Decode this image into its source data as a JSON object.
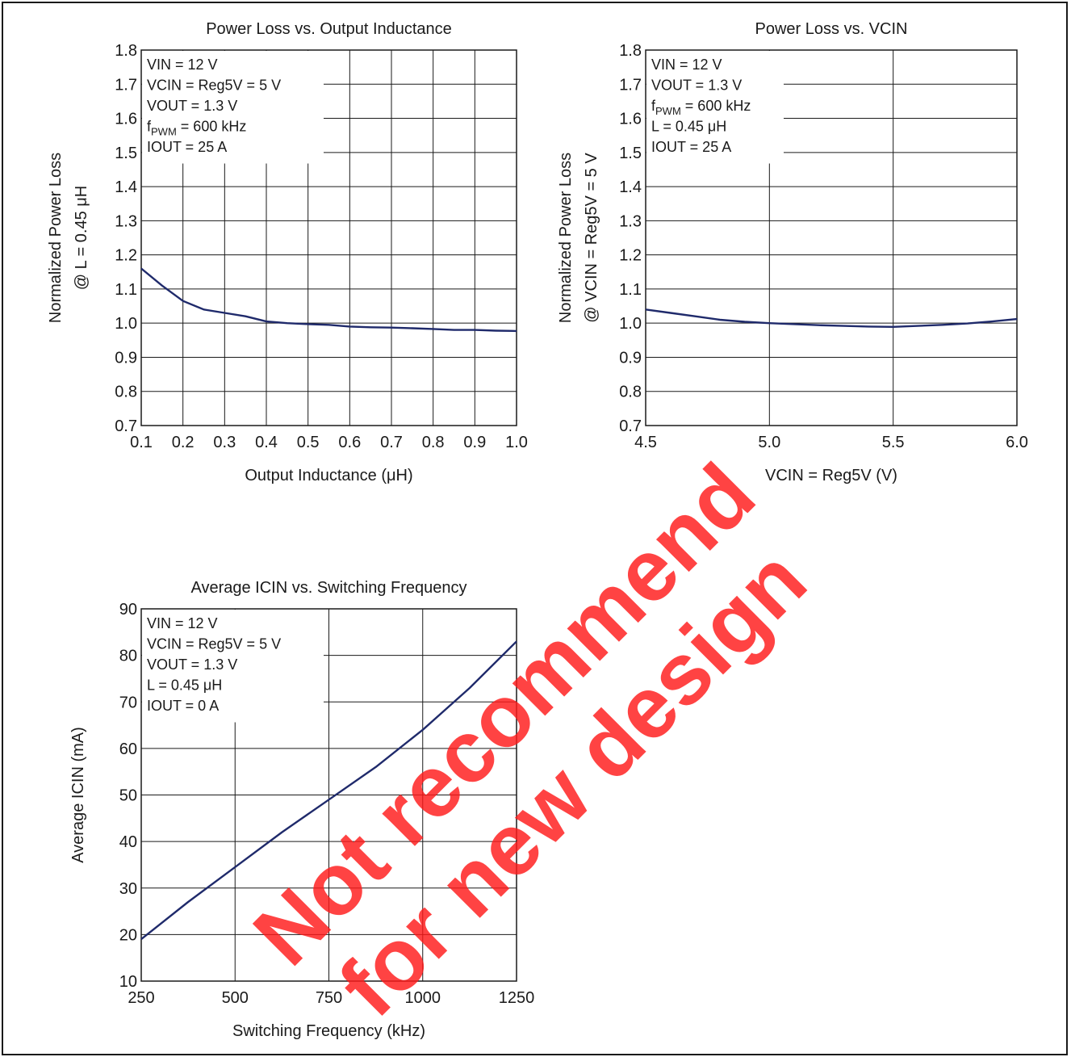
{
  "chart_data": [
    {
      "type": "line",
      "title": "Power Loss vs. Output Inductance",
      "xlabel": "Output Inductance   (μH)",
      "ylabel": [
        "Normalized Power Loss",
        "@ L = 0.45 μH"
      ],
      "xlim": [
        0.1,
        1.0
      ],
      "ylim": [
        0.7,
        1.8
      ],
      "xticks": [
        "0.1",
        "0.2",
        "0.3",
        "0.4",
        "0.5",
        "0.6",
        "0.7",
        "0.8",
        "0.9",
        "1.0"
      ],
      "yticks": [
        "0.7",
        "0.8",
        "0.9",
        "1.0",
        "1.1",
        "1.2",
        "1.3",
        "1.4",
        "1.5",
        "1.6",
        "1.7",
        "1.8"
      ],
      "grid": true,
      "annotations": [
        {
          "text": "VIN = 12 V"
        },
        {
          "text": "VCIN = Reg5V = 5 V"
        },
        {
          "text": "VOUT = 1.3 V"
        },
        {
          "text": "f",
          "sub": "PWM",
          "rest": " = 600 kHz"
        },
        {
          "text": "IOUT = 25 A"
        }
      ],
      "series": [
        {
          "color": "#1f2a6b",
          "x": [
            0.1,
            0.15,
            0.2,
            0.25,
            0.3,
            0.35,
            0.4,
            0.45,
            0.5,
            0.55,
            0.6,
            0.65,
            0.7,
            0.75,
            0.8,
            0.85,
            0.9,
            0.95,
            1.0
          ],
          "y": [
            1.16,
            1.11,
            1.065,
            1.04,
            1.03,
            1.02,
            1.005,
            1.0,
            0.997,
            0.995,
            0.99,
            0.988,
            0.987,
            0.985,
            0.983,
            0.98,
            0.98,
            0.978,
            0.977
          ]
        }
      ]
    },
    {
      "type": "line",
      "title": "Power Loss vs. VCIN",
      "xlabel": "VCIN = Reg5V   (V)",
      "ylabel": [
        "Normalized Power Loss",
        "@ VCIN = Reg5V = 5 V"
      ],
      "xlim": [
        4.5,
        6.0
      ],
      "ylim": [
        0.7,
        1.8
      ],
      "xticks": [
        "4.5",
        "5.0",
        "5.5",
        "6.0"
      ],
      "yticks": [
        "0.7",
        "0.8",
        "0.9",
        "1.0",
        "1.1",
        "1.2",
        "1.3",
        "1.4",
        "1.5",
        "1.6",
        "1.7",
        "1.8"
      ],
      "grid": true,
      "annotations": [
        {
          "text": "VIN = 12 V"
        },
        {
          "text": "VOUT = 1.3 V"
        },
        {
          "text": "f",
          "sub": "PWM",
          "rest": " = 600 kHz"
        },
        {
          "text": "L = 0.45 μH"
        },
        {
          "text": "IOUT = 25 A"
        }
      ],
      "series": [
        {
          "color": "#1f2a6b",
          "x": [
            4.5,
            4.6,
            4.7,
            4.8,
            4.9,
            5.0,
            5.1,
            5.2,
            5.3,
            5.4,
            5.5,
            5.6,
            5.7,
            5.8,
            5.9,
            6.0
          ],
          "y": [
            1.04,
            1.03,
            1.02,
            1.01,
            1.004,
            1.0,
            0.997,
            0.994,
            0.992,
            0.99,
            0.989,
            0.992,
            0.995,
            0.999,
            1.005,
            1.012
          ]
        }
      ]
    },
    {
      "type": "line",
      "title": "Average ICIN vs. Switching Frequency",
      "xlabel": "Switching Frequency   (kHz)",
      "ylabel": [
        "Average ICIN   (mA)"
      ],
      "xlim": [
        250,
        1250
      ],
      "ylim": [
        10,
        90
      ],
      "xticks": [
        "250",
        "500",
        "750",
        "1000",
        "1250"
      ],
      "yticks": [
        "10",
        "20",
        "30",
        "40",
        "50",
        "60",
        "70",
        "80",
        "90"
      ],
      "grid": true,
      "annotations": [
        {
          "text": "VIN = 12 V"
        },
        {
          "text": "VCIN = Reg5V = 5 V"
        },
        {
          "text": "VOUT = 1.3 V"
        },
        {
          "text": "L = 0.45 μH"
        },
        {
          "text": "IOUT = 0 A"
        }
      ],
      "series": [
        {
          "color": "#1f2a6b",
          "x": [
            250,
            375,
            500,
            625,
            750,
            875,
            1000,
            1125,
            1250
          ],
          "y": [
            19,
            27,
            34.5,
            42,
            49,
            56,
            64,
            73,
            83
          ]
        }
      ]
    }
  ],
  "watermark": [
    "Not recommend",
    "for new design"
  ]
}
